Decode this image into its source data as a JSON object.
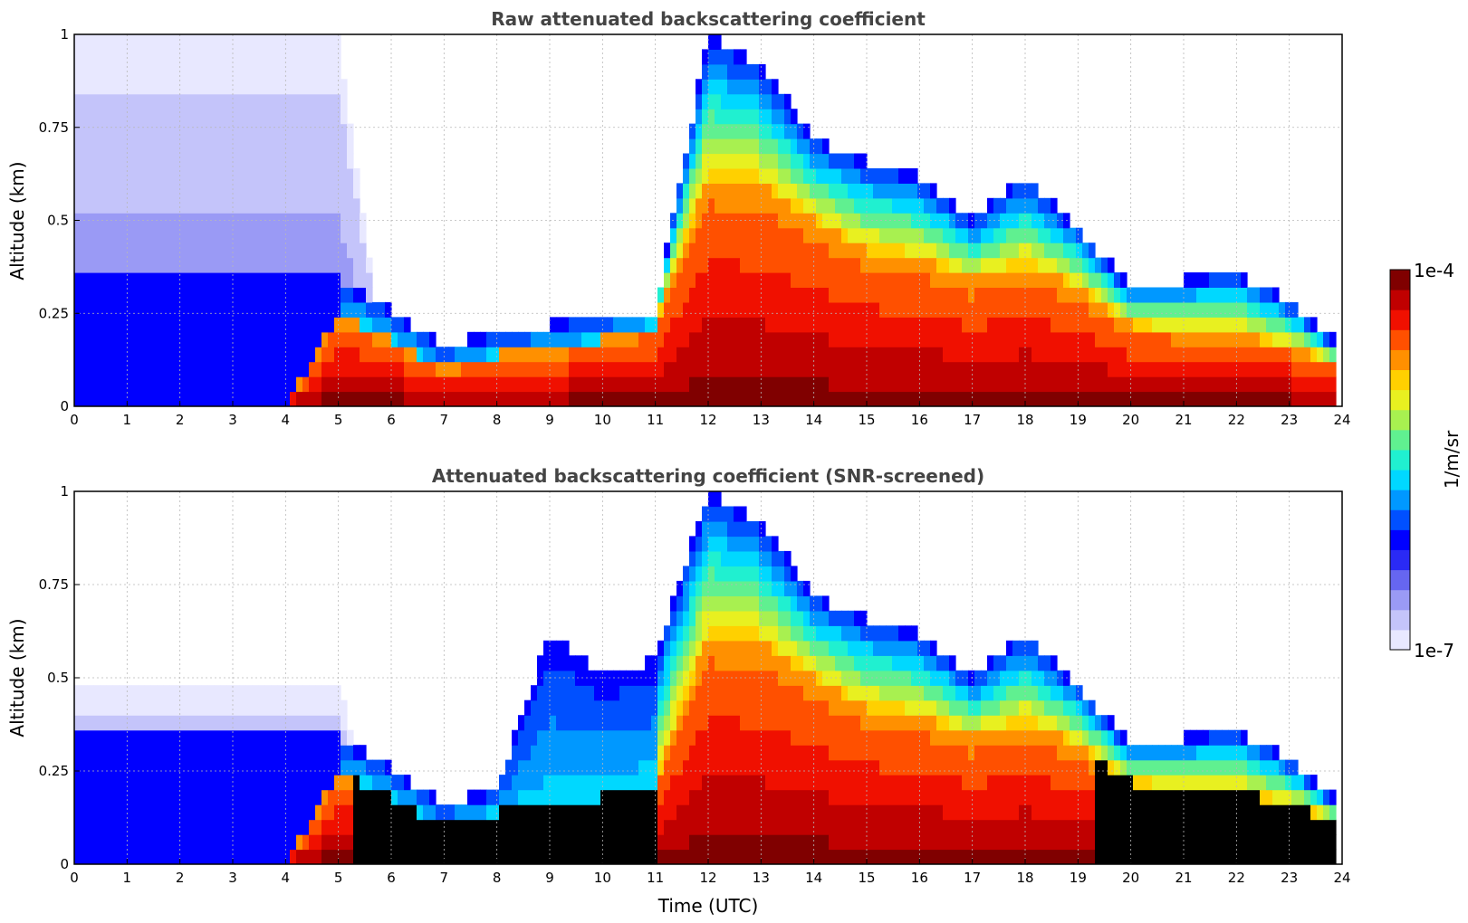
{
  "chart_data": [
    {
      "type": "heatmap",
      "title": "Raw attenuated backscattering coefficient",
      "xlabel": "",
      "ylabel": "Altitude (km)",
      "xlim": [
        0,
        24
      ],
      "ylim": [
        0,
        1
      ],
      "x_ticks": [
        "0",
        "1",
        "2",
        "3",
        "4",
        "5",
        "6",
        "7",
        "8",
        "9",
        "10",
        "11",
        "12",
        "13",
        "14",
        "15",
        "16",
        "17",
        "18",
        "19",
        "20",
        "21",
        "22",
        "23",
        "24"
      ],
      "y_ticks": [
        "0",
        "0.25",
        "0.5",
        "0.75",
        "1"
      ],
      "grid": true,
      "colorscale": "log",
      "features": {
        "x": [
          0,
          1,
          2,
          3,
          4,
          5,
          6,
          7,
          8,
          9,
          10,
          11,
          12,
          13,
          14,
          15,
          16,
          17,
          18,
          19,
          20,
          21,
          22,
          23,
          23.8
        ],
        "aerosol_top_km": [
          0.36,
          0.36,
          0.35,
          0.36,
          0.37,
          0.34,
          0.26,
          0.16,
          0.2,
          0.22,
          0.25,
          0.26,
          1.0,
          0.92,
          0.72,
          0.66,
          0.62,
          0.5,
          0.62,
          0.48,
          0.32,
          0.34,
          0.36,
          0.28,
          0.18
        ],
        "dense_layer_top_km": [
          0.0,
          0.0,
          0.0,
          0.0,
          0.0,
          0.25,
          0.18,
          0.1,
          0.14,
          0.15,
          0.18,
          0.22,
          0.62,
          0.6,
          0.5,
          0.42,
          0.4,
          0.34,
          0.38,
          0.32,
          0.22,
          0.2,
          0.2,
          0.16,
          0.12
        ],
        "noise_top_km": [
          1.0,
          1.0,
          1.0,
          1.0,
          1.0,
          1.0,
          0.0,
          0.0,
          0.0,
          0.0,
          0.0,
          0.0,
          0.0,
          0.0,
          0.0,
          0.0,
          0.0,
          0.0,
          0.0,
          0.0,
          0.0,
          0.0,
          0.0,
          0.0,
          0.0
        ],
        "screened_black": false
      }
    },
    {
      "type": "heatmap",
      "title": "Attenuated backscattering coefficient (SNR-screened)",
      "xlabel": "Time (UTC)",
      "ylabel": "Altitude (km)",
      "xlim": [
        0,
        24
      ],
      "ylim": [
        0,
        1
      ],
      "x_ticks": [
        "0",
        "1",
        "2",
        "3",
        "4",
        "5",
        "6",
        "7",
        "8",
        "9",
        "10",
        "11",
        "12",
        "13",
        "14",
        "15",
        "16",
        "17",
        "18",
        "19",
        "20",
        "21",
        "22",
        "23",
        "24"
      ],
      "y_ticks": [
        "0",
        "0.25",
        "0.5",
        "0.75",
        "1"
      ],
      "grid": true,
      "colorscale": "log",
      "features": {
        "x": [
          0,
          1,
          2,
          3,
          4,
          5,
          6,
          7,
          8,
          9,
          10,
          11,
          12,
          13,
          14,
          15,
          16,
          17,
          18,
          19,
          20,
          21,
          22,
          23,
          23.8
        ],
        "aerosol_top_km": [
          0.36,
          0.36,
          0.35,
          0.36,
          0.37,
          0.34,
          0.26,
          0.16,
          0.2,
          0.62,
          0.5,
          0.55,
          1.0,
          0.92,
          0.72,
          0.66,
          0.62,
          0.5,
          0.62,
          0.48,
          0.32,
          0.34,
          0.36,
          0.28,
          0.18
        ],
        "dense_layer_top_km": [
          0.0,
          0.0,
          0.0,
          0.0,
          0.0,
          0.25,
          0.18,
          0.1,
          0.14,
          0.15,
          0.18,
          0.22,
          0.62,
          0.6,
          0.5,
          0.42,
          0.4,
          0.34,
          0.38,
          0.32,
          0.22,
          0.2,
          0.2,
          0.16,
          0.12
        ],
        "noise_top_km": [
          0.5,
          0.48,
          0.47,
          0.49,
          0.48,
          0.47,
          0.0,
          0.0,
          0.0,
          0.0,
          0.0,
          0.0,
          0.0,
          0.0,
          0.0,
          0.0,
          0.0,
          0.0,
          0.0,
          0.0,
          0.0,
          0.0,
          0.0,
          0.0,
          0.0
        ],
        "screened_black": true
      }
    }
  ],
  "colorbar": {
    "max_label": "1e-4",
    "min_label": "1e-7",
    "unit_label": "1/m/sr",
    "colors": [
      "#e8e8ff",
      "#c4c4fa",
      "#9a9af5",
      "#6666f0",
      "#2a2af5",
      "#0000ff",
      "#0050ff",
      "#0098ff",
      "#00d8ff",
      "#20f0d0",
      "#60f090",
      "#a8f050",
      "#e8f020",
      "#ffd000",
      "#ff9000",
      "#ff5000",
      "#f01000",
      "#c00000",
      "#800000"
    ]
  }
}
